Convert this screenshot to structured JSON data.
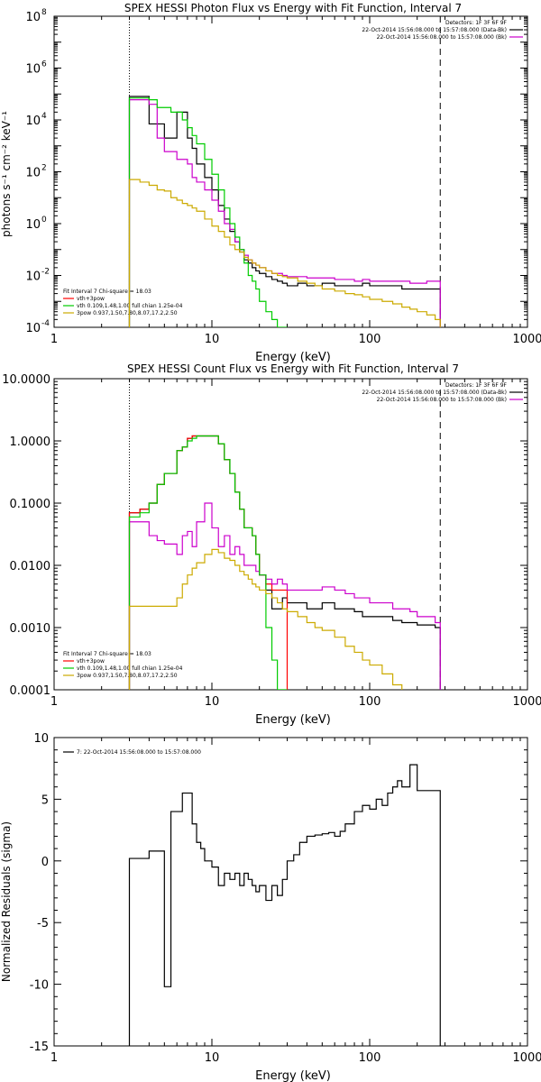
{
  "chart_data": [
    {
      "type": "line",
      "title": "SPEX HESSI Photon Flux vs Energy with Fit Function, Interval 7",
      "xlabel": "Energy (keV)",
      "ylabel": "photons s⁻¹ cm⁻² keV⁻¹",
      "xscale": "log",
      "yscale": "log",
      "xlim": [
        1,
        1000
      ],
      "ylim": [
        0.0001,
        100000000
      ],
      "xticks": [
        "1",
        "10",
        "100",
        "1000"
      ],
      "yticks": [
        {
          "base": "10",
          "exp": "-4"
        },
        {
          "base": "10",
          "exp": "-2"
        },
        {
          "base": "10",
          "exp": "0"
        },
        {
          "base": "10",
          "exp": "2"
        },
        {
          "base": "10",
          "exp": "4"
        },
        {
          "base": "10",
          "exp": "6"
        },
        {
          "base": "10",
          "exp": "8"
        }
      ],
      "info_lines": [
        {
          "text": "Detectors: 1F 3F 6F 9F",
          "color": "#000000"
        },
        {
          "text": "22-Oct-2014 15:56:08.000 to 15:57:08.000 (Data-Bk)",
          "color": "#000000"
        },
        {
          "text": "22-Oct-2014 15:56:08.000 to 15:57:08.000 (Bk)",
          "color": "#cc00cc"
        }
      ],
      "legend_lines": [
        {
          "text": "Fit Interval  7    Chi-square = 18.03",
          "color": "#000000"
        },
        {
          "text": "vth+3pow",
          "color": "#ff0000"
        },
        {
          "text": "vth 0.109,1.48,1.00  full chian 1.25e-04",
          "color": "#00cc00"
        },
        {
          "text": "3pow 0.937,1.50,7.80,8.07,17.2,2.50",
          "color": "#ccaa00"
        }
      ],
      "fit_range_lines": [
        3.0,
        280
      ],
      "series": [
        {
          "color": "#000000",
          "x": [
            3,
            3.5,
            4,
            4.5,
            5,
            5.5,
            6,
            6.5,
            7,
            7.5,
            8,
            9,
            10,
            11,
            12,
            13,
            14,
            15,
            16,
            17,
            18,
            19,
            20,
            22,
            24,
            26,
            28,
            30,
            35,
            40,
            45,
            50,
            60,
            70,
            80,
            90,
            100,
            120,
            140,
            160,
            180,
            200,
            230,
            260,
            280
          ],
          "y": [
            80000,
            80000,
            7000,
            7000,
            2000,
            2000,
            20000,
            20000,
            2000,
            800,
            200,
            60,
            20,
            5,
            1.5,
            0.5,
            0.2,
            0.08,
            0.04,
            0.03,
            0.02,
            0.015,
            0.012,
            0.009,
            0.007,
            0.006,
            0.005,
            0.004,
            0.005,
            0.004,
            0.004,
            0.005,
            0.004,
            0.004,
            0.004,
            0.005,
            0.004,
            0.004,
            0.004,
            0.003,
            0.003,
            0.003,
            0.003,
            0.003,
            0.003
          ]
        },
        {
          "color": "#cc00cc",
          "x": [
            3,
            3.5,
            4,
            4.5,
            5,
            5.5,
            6,
            6.5,
            7,
            7.5,
            8,
            9,
            10,
            11,
            12,
            13,
            14,
            15,
            16,
            17,
            18,
            19,
            20,
            22,
            24,
            26,
            28,
            30,
            35,
            40,
            45,
            50,
            60,
            70,
            80,
            90,
            100,
            120,
            140,
            160,
            180,
            200,
            230,
            260,
            280
          ],
          "y": [
            60000,
            60000,
            40000,
            2000,
            600,
            600,
            300,
            300,
            200,
            60,
            40,
            20,
            8,
            3,
            1,
            0.6,
            0.2,
            0.1,
            0.06,
            0.04,
            0.03,
            0.025,
            0.02,
            0.015,
            0.012,
            0.012,
            0.01,
            0.009,
            0.009,
            0.008,
            0.008,
            0.008,
            0.007,
            0.007,
            0.006,
            0.007,
            0.006,
            0.006,
            0.006,
            0.006,
            0.005,
            0.005,
            0.006,
            0.006,
            0.006
          ]
        },
        {
          "color": "#00cc00",
          "x": [
            3,
            3.5,
            4,
            4.5,
            5,
            5.5,
            6,
            6.5,
            7,
            7.5,
            8,
            9,
            10,
            11,
            12,
            13,
            14,
            15,
            16,
            17,
            18,
            19,
            20,
            22,
            24,
            26,
            28,
            30
          ],
          "y": [
            70000,
            70000,
            60000,
            30000,
            30000,
            20000,
            20000,
            10000,
            5000,
            2500,
            1200,
            300,
            80,
            20,
            4,
            1,
            0.3,
            0.1,
            0.03,
            0.01,
            0.006,
            0.003,
            0.001,
            0.0004,
            0.0002,
            0.0001,
            0.0001,
            0.0001
          ]
        },
        {
          "color": "#ccaa00",
          "x": [
            3,
            3.5,
            4,
            4.5,
            5,
            5.5,
            6,
            6.5,
            7,
            7.5,
            8,
            9,
            10,
            11,
            12,
            13,
            14,
            15,
            16,
            17,
            18,
            19,
            20,
            22,
            24,
            26,
            28,
            30,
            35,
            40,
            45,
            50,
            60,
            70,
            80,
            90,
            100,
            120,
            140,
            160,
            180,
            200,
            230,
            260,
            280
          ],
          "y": [
            50,
            40,
            30,
            20,
            18,
            10,
            8,
            6,
            5,
            4,
            3,
            1.5,
            0.8,
            0.5,
            0.3,
            0.15,
            0.1,
            0.08,
            0.05,
            0.04,
            0.03,
            0.025,
            0.02,
            0.015,
            0.012,
            0.01,
            0.009,
            0.008,
            0.006,
            0.005,
            0.004,
            0.003,
            0.0025,
            0.002,
            0.0018,
            0.0015,
            0.0012,
            0.001,
            0.0008,
            0.0006,
            0.0005,
            0.0004,
            0.0003,
            0.0002,
            0.0002
          ]
        }
      ]
    },
    {
      "type": "line",
      "title": "SPEX HESSI Count Flux vs Energy with Fit Function, Interval 7",
      "xlabel": "Energy (keV)",
      "ylabel": "",
      "xscale": "log",
      "yscale": "log",
      "xlim": [
        1,
        1000
      ],
      "ylim": [
        0.0001,
        10
      ],
      "xticks": [
        "1",
        "10",
        "100",
        "1000"
      ],
      "yticks": [
        "0.0001",
        "0.0010",
        "0.0100",
        "0.1000",
        "1.0000",
        "10.0000"
      ],
      "info_lines": [
        {
          "text": "Detectors: 1F 3F 6F 9F",
          "color": "#000000"
        },
        {
          "text": "22-Oct-2014 15:56:08.000 to 15:57:08.000 (Data-Bk)",
          "color": "#000000"
        },
        {
          "text": "22-Oct-2014 15:56:08.000 to 15:57:08.000 (Bk)",
          "color": "#cc00cc"
        }
      ],
      "legend_lines": [
        {
          "text": "Fit Interval  7    Chi-square = 18.03",
          "color": "#000000"
        },
        {
          "text": "vth+3pow",
          "color": "#ff0000"
        },
        {
          "text": "vth 0.109,1.48,1.00  full chian 1.25e-04",
          "color": "#00cc00"
        },
        {
          "text": "3pow 0.937,1.50,7.80,8.07,17.2,2.50",
          "color": "#ccaa00"
        }
      ],
      "fit_range_lines": [
        3.0,
        280
      ],
      "series": [
        {
          "color": "#000000",
          "x": [
            3,
            3.5,
            4,
            4.5,
            5,
            5.5,
            6,
            6.5,
            7,
            7.5,
            8,
            9,
            10,
            11,
            12,
            13,
            14,
            15,
            16,
            17,
            18,
            19,
            20,
            22,
            24,
            26,
            28,
            30,
            35,
            40,
            45,
            50,
            60,
            70,
            80,
            90,
            100,
            120,
            140,
            160,
            180,
            200,
            230,
            260,
            280
          ],
          "y": [
            0.07,
            0.08,
            0.1,
            0.2,
            0.3,
            0.3,
            0.7,
            0.8,
            1.1,
            1.2,
            1.2,
            1.2,
            1.2,
            0.9,
            0.5,
            0.3,
            0.15,
            0.08,
            0.04,
            0.04,
            0.03,
            0.015,
            0.007,
            0.004,
            0.002,
            0.002,
            0.003,
            0.0025,
            0.0025,
            0.002,
            0.002,
            0.0025,
            0.002,
            0.002,
            0.0018,
            0.0015,
            0.0015,
            0.0015,
            0.0013,
            0.0012,
            0.0012,
            0.0011,
            0.0011,
            0.001,
            0.001
          ]
        },
        {
          "color": "#ff0000",
          "x": [
            3,
            3.5,
            4,
            4.5,
            5,
            5.5,
            6,
            6.5,
            7,
            7.5,
            8,
            9,
            10,
            11,
            12,
            13,
            14,
            15,
            16,
            17,
            18,
            19,
            20,
            22,
            24,
            26,
            28,
            30
          ],
          "y": [
            0.07,
            0.08,
            0.1,
            0.2,
            0.3,
            0.3,
            0.7,
            0.8,
            1.1,
            1.2,
            1.2,
            1.2,
            1.2,
            0.9,
            0.5,
            0.3,
            0.15,
            0.08,
            0.04,
            0.04,
            0.03,
            0.015,
            0.007,
            0.005,
            0.004,
            0.004,
            0.004,
            0.004
          ]
        },
        {
          "color": "#cc00cc",
          "x": [
            3,
            3.5,
            4,
            4.5,
            5,
            5.5,
            6,
            6.5,
            7,
            7.5,
            8,
            9,
            10,
            11,
            12,
            13,
            14,
            15,
            16,
            17,
            18,
            19,
            20,
            22,
            24,
            26,
            28,
            30,
            35,
            40,
            45,
            50,
            60,
            70,
            80,
            90,
            100,
            120,
            140,
            160,
            180,
            200,
            230,
            260,
            280
          ],
          "y": [
            0.05,
            0.05,
            0.03,
            0.025,
            0.022,
            0.022,
            0.015,
            0.03,
            0.035,
            0.02,
            0.05,
            0.1,
            0.04,
            0.02,
            0.03,
            0.015,
            0.02,
            0.015,
            0.01,
            0.01,
            0.01,
            0.008,
            0.007,
            0.006,
            0.005,
            0.006,
            0.005,
            0.004,
            0.004,
            0.004,
            0.004,
            0.0045,
            0.004,
            0.0035,
            0.003,
            0.003,
            0.0025,
            0.0025,
            0.002,
            0.002,
            0.0018,
            0.0015,
            0.0015,
            0.0012,
            0.0012
          ]
        },
        {
          "color": "#00cc00",
          "x": [
            3,
            3.5,
            4,
            4.5,
            5,
            5.5,
            6,
            6.5,
            7,
            7.5,
            8,
            9,
            10,
            11,
            12,
            13,
            14,
            15,
            16,
            17,
            18,
            19,
            20,
            22,
            24,
            26,
            28,
            30
          ],
          "y": [
            0.06,
            0.07,
            0.1,
            0.2,
            0.3,
            0.3,
            0.7,
            0.8,
            1.0,
            1.1,
            1.2,
            1.2,
            1.2,
            0.9,
            0.5,
            0.3,
            0.15,
            0.08,
            0.04,
            0.04,
            0.03,
            0.015,
            0.007,
            0.001,
            0.0003,
            0.0001,
            0.0001,
            0.0001
          ]
        },
        {
          "color": "#ccaa00",
          "x": [
            3,
            3.5,
            4,
            4.5,
            5,
            5.5,
            6,
            6.5,
            7,
            7.5,
            8,
            9,
            10,
            11,
            12,
            13,
            14,
            15,
            16,
            17,
            18,
            19,
            20,
            22,
            24,
            26,
            28,
            30,
            35,
            40,
            45,
            50,
            60,
            70,
            80,
            90,
            100,
            120,
            140,
            160
          ],
          "y": [
            0.0022,
            0.0022,
            0.0022,
            0.0022,
            0.0022,
            0.0022,
            0.003,
            0.005,
            0.007,
            0.009,
            0.011,
            0.015,
            0.018,
            0.016,
            0.013,
            0.012,
            0.01,
            0.008,
            0.007,
            0.006,
            0.005,
            0.0045,
            0.004,
            0.0035,
            0.003,
            0.0025,
            0.002,
            0.0018,
            0.0015,
            0.0012,
            0.001,
            0.0009,
            0.0007,
            0.0005,
            0.0004,
            0.0003,
            0.00025,
            0.00018,
            0.00012,
            0.0001
          ]
        }
      ]
    },
    {
      "type": "line",
      "title": "",
      "xlabel": "Energy (keV)",
      "ylabel": "Normalized Residuals (sigma)",
      "xscale": "log",
      "yscale": "linear",
      "xlim": [
        1,
        1000
      ],
      "ylim": [
        -15,
        10
      ],
      "xticks": [
        "1",
        "10",
        "100",
        "1000"
      ],
      "yticks": [
        "-15",
        "-10",
        "-5",
        "0",
        "5",
        "10"
      ],
      "legend_lines": [
        {
          "text": "7: 22-Oct-2014 15:56:08.000 to 15:57:08.000",
          "color": "#000000"
        }
      ],
      "series": [
        {
          "color": "#000000",
          "edges": [
            3,
            4,
            5,
            5.5,
            6.5,
            7.5,
            8,
            8.5,
            9,
            10,
            11,
            12,
            13,
            14,
            15,
            16,
            17,
            18,
            19,
            20,
            22,
            24,
            26,
            28,
            30,
            33,
            36,
            40,
            45,
            50,
            55,
            60,
            65,
            70,
            80,
            90,
            100,
            110,
            120,
            130,
            140,
            150,
            160,
            180,
            200,
            220,
            240,
            280
          ],
          "values": [
            0.2,
            0.8,
            -10.2,
            4,
            5.5,
            3,
            1.5,
            1,
            0,
            -0.5,
            -2,
            -1,
            -1.5,
            -1,
            -2,
            -1,
            -1.5,
            -2,
            -2.5,
            -2,
            -3.2,
            -2,
            -2.8,
            -1.5,
            0,
            0.5,
            1.5,
            2,
            2.1,
            2.2,
            2.3,
            2,
            2.4,
            3,
            4,
            4.5,
            4.2,
            5,
            4.5,
            5.5,
            6,
            6.5,
            6,
            7.8,
            5.7,
            5.7,
            5.7
          ]
        }
      ]
    }
  ]
}
